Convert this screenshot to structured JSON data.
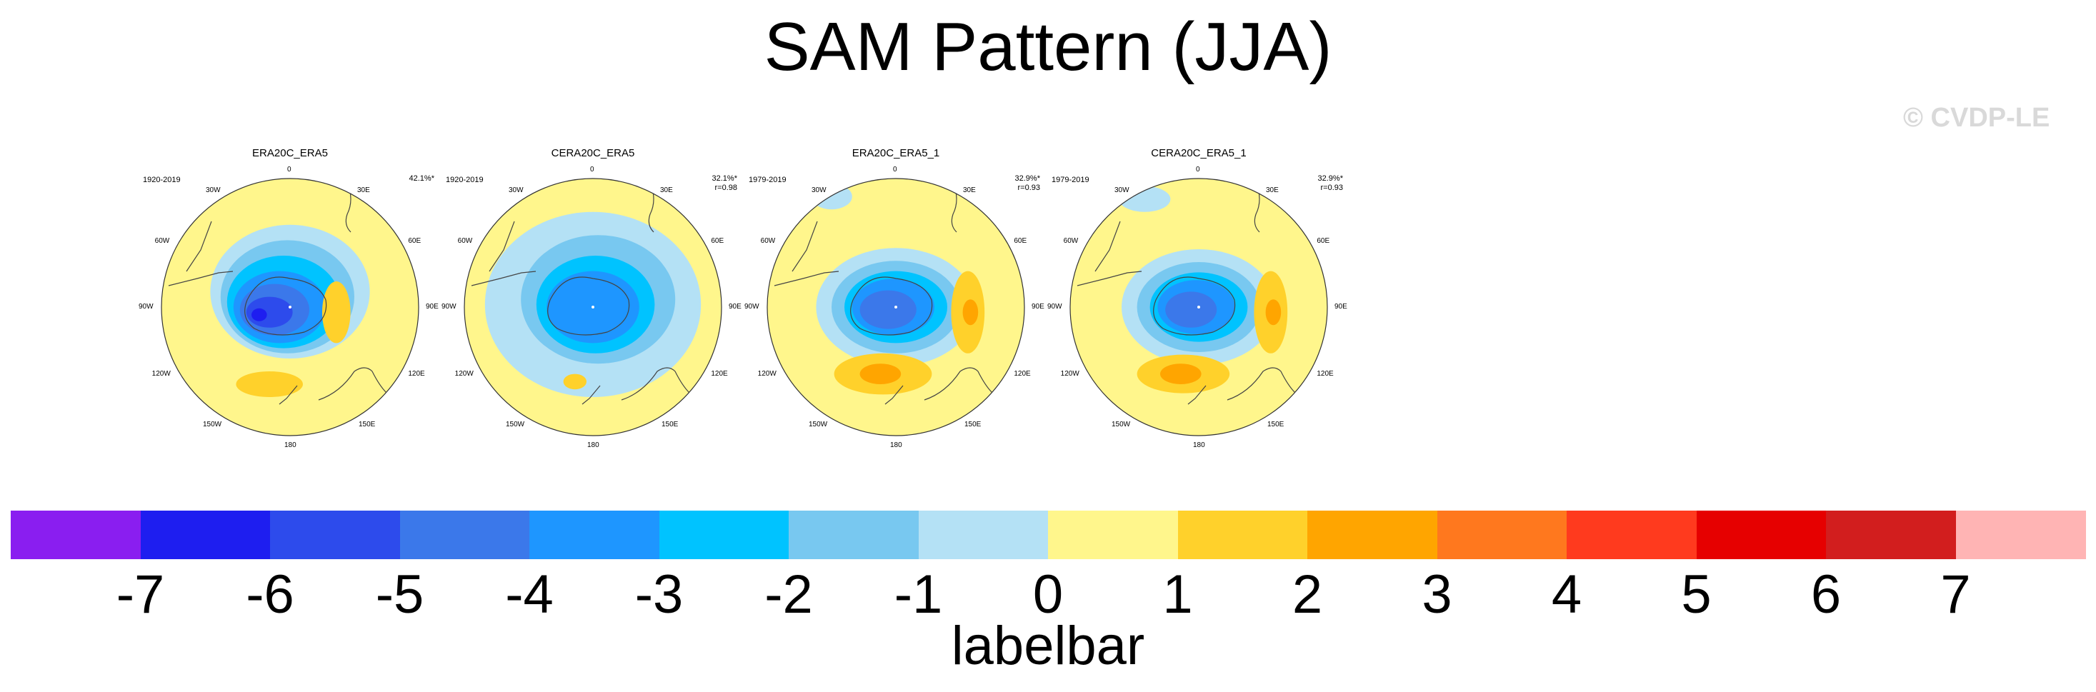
{
  "title": "SAM Pattern (JJA)",
  "watermark": "© CVDP-LE",
  "panels": [
    {
      "title": "ERA20C_ERA5",
      "period": "1920-2019",
      "pct": "42.1%*",
      "r": ""
    },
    {
      "title": "CERA20C_ERA5",
      "period": "1920-2019",
      "pct": "32.1%*",
      "r": "r=0.98"
    },
    {
      "title": "ERA20C_ERA5_1",
      "period": "1979-2019",
      "pct": "32.9%*",
      "r": "r=0.93"
    },
    {
      "title": "CERA20C_ERA5_1",
      "period": "1979-2019",
      "pct": "32.9%*",
      "r": "r=0.93"
    }
  ],
  "lon_labels": {
    "top": "0",
    "bottom": "180",
    "e30": "30E",
    "e60": "60E",
    "e90": "90E",
    "e120": "120E",
    "e150": "150E",
    "w30": "30W",
    "w60": "60W",
    "w90": "90W",
    "w120": "120W",
    "w150": "150W"
  },
  "colorbar": {
    "colors": [
      "#8a1ef0",
      "#1e1ef0",
      "#2d4bec",
      "#3b78ea",
      "#1e96ff",
      "#00c3ff",
      "#78c8f0",
      "#b4e1f5",
      "#fff68c",
      "#ffd12b",
      "#ffa500",
      "#ff781e",
      "#ff3a1e",
      "#e60000",
      "#d21e1e",
      "#ffb4b4"
    ],
    "ticks": [
      "-7",
      "-6",
      "-5",
      "-4",
      "-3",
      "-2",
      "-1",
      "0",
      "1",
      "2",
      "3",
      "4",
      "5",
      "6",
      "7"
    ],
    "label": "labelbar"
  }
}
